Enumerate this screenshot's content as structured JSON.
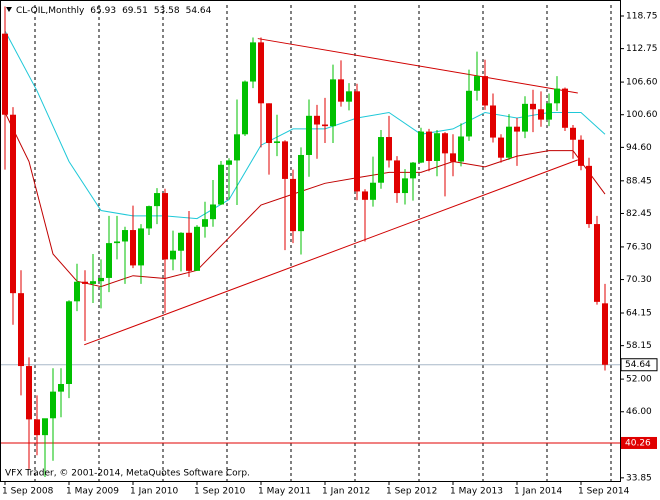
{
  "chart_data": {
    "type": "candlestick",
    "title": "CL-OIL,Monthly",
    "credit": "VFX Trader, © 2001-2014, MetaQuotes Software Corp.",
    "categories": [
      "1 Sep 2008",
      null,
      null,
      null,
      null,
      null,
      null,
      null,
      "1 May 2009",
      null,
      null,
      null,
      null,
      null,
      null,
      null,
      "1 Jan 2010",
      null,
      null,
      null,
      null,
      null,
      null,
      null,
      "1 Sep 2010",
      null,
      null,
      null,
      null,
      null,
      null,
      null,
      "1 May 2011",
      null,
      null,
      null,
      null,
      null,
      null,
      null,
      "1 Jan 2012",
      null,
      null,
      null,
      null,
      null,
      null,
      null,
      "1 Sep 2012",
      null,
      null,
      null,
      null,
      null,
      null,
      null,
      "1 May 2013",
      null,
      null,
      null,
      null,
      null,
      null,
      null,
      "1 Jan 2014",
      null,
      null,
      null,
      null,
      null,
      null,
      null,
      "1 Sep 2014",
      null,
      null,
      null
    ],
    "open": [
      115.5,
      100.6,
      67.8,
      54.4,
      44.6,
      41.7,
      44.8,
      49.7,
      51.1,
      66.3,
      69.9,
      69.5,
      70,
      70.6,
      77,
      77.3,
      79.4,
      72.9,
      79.7,
      83.8,
      86.2,
      74,
      75.6,
      78.9,
      71.9,
      80,
      81.4,
      84.1,
      91.4,
      92.2,
      97,
      106.7,
      113.9,
      102.7,
      95.4,
      95.7,
      88.8,
      79.2,
      93.2,
      100.4,
      98.8,
      98.5,
      107.1,
      103,
      104.9,
      86.5,
      84.96,
      88.1,
      96.5,
      92.2,
      86.2,
      88.9,
      91.8,
      97.5,
      92.1,
      97.2,
      93.5,
      92,
      96.6,
      105,
      107.7,
      102.3,
      96.4,
      92.7,
      98.4,
      97.5,
      102.6,
      101.6,
      99.7,
      102.7,
      105.4,
      98.2,
      96,
      91.2,
      80.5,
      65.93
    ],
    "high": [
      120.5,
      102,
      72,
      56,
      49,
      44,
      54,
      54,
      66.5,
      73.2,
      72,
      75,
      74,
      82,
      82,
      80,
      83.9,
      80.5,
      83.9,
      87.1,
      87,
      79.3,
      79,
      82.9,
      80.3,
      84.6,
      88.6,
      92.1,
      92.6,
      103.4,
      106.9,
      114.8,
      114.8,
      102.7,
      100.6,
      95.9,
      90.5,
      94.6,
      103.4,
      102.4,
      103.7,
      109.8,
      110.6,
      106.4,
      106.3,
      86.9,
      92.9,
      97.8,
      100.4,
      93,
      90.6,
      91.9,
      98.2,
      98,
      97.8,
      97.4,
      97,
      99,
      108.9,
      112.2,
      110.7,
      104.5,
      97,
      100.7,
      100,
      104,
      105.2,
      104.9,
      104.5,
      107.7,
      105.6,
      98.7,
      96.8,
      92.7,
      82,
      69.51
    ],
    "low": [
      90.5,
      62,
      49,
      35.5,
      38,
      34,
      37,
      45,
      48.5,
      64.5,
      59,
      66,
      65,
      68,
      74,
      69.5,
      72.4,
      69.5,
      78.5,
      80.5,
      64.2,
      72,
      71.8,
      70.8,
      72,
      78,
      80,
      84,
      85,
      84,
      96.7,
      105.5,
      94.6,
      89.6,
      93,
      75.7,
      77,
      74.9,
      89.2,
      92.5,
      95.4,
      95.4,
      102.1,
      101.4,
      84.9,
      77.3,
      83.7,
      87,
      90.9,
      84.4,
      84.1,
      84.8,
      91.7,
      90.2,
      89.3,
      85.6,
      89.3,
      91.1,
      95.8,
      103.2,
      101.5,
      95.5,
      91.8,
      92.3,
      91.2,
      96.3,
      97.4,
      98.4,
      98.5,
      101.3,
      97.6,
      92.5,
      90.4,
      79.8,
      65.7,
      53.58
    ],
    "close": [
      100.6,
      67.8,
      54.4,
      44.6,
      41.7,
      44.8,
      49.7,
      51.1,
      66.3,
      69.9,
      69.5,
      70,
      70.6,
      77,
      77.3,
      79.4,
      72.9,
      79.7,
      83.8,
      86.2,
      74,
      75.6,
      78.9,
      71.9,
      80,
      81.4,
      84.1,
      91.4,
      92.2,
      97,
      106.7,
      113.9,
      102.7,
      95.4,
      95.7,
      88.8,
      79.2,
      93.2,
      100.4,
      98.8,
      98.5,
      107.1,
      103,
      104.9,
      86.5,
      84.96,
      88.1,
      96.5,
      92.2,
      86.2,
      88.9,
      91.8,
      97.5,
      92.1,
      97.2,
      93.5,
      92,
      96.6,
      105,
      107.7,
      102.3,
      96.4,
      92.7,
      98.4,
      97.5,
      102.6,
      101.6,
      99.7,
      102.7,
      105.4,
      98.2,
      96,
      91.2,
      80.5,
      66.2,
      54.64
    ],
    "up_color": "#00c000",
    "down_color": "#e00000",
    "lines": [
      {
        "color": "#1ec8d8",
        "x": [
          0,
          4,
          8,
          12,
          16,
          20,
          24,
          28,
          32,
          36,
          40,
          44,
          48,
          52,
          56,
          60,
          64,
          68,
          72,
          75
        ],
        "values": [
          116,
          105,
          92,
          83,
          82,
          82,
          81.5,
          85,
          95,
          98,
          98,
          100,
          101,
          97,
          98,
          101,
          100,
          101,
          101,
          97
        ]
      },
      {
        "color": "#c00000",
        "x": [
          0,
          3,
          6,
          9,
          12,
          16,
          20,
          24,
          28,
          32,
          36,
          40,
          44,
          48,
          52,
          56,
          60,
          64,
          68,
          71,
          73,
          75
        ],
        "values": [
          101,
          92,
          75,
          70,
          69,
          71,
          70.5,
          72,
          78,
          84,
          86,
          88,
          89,
          90,
          90,
          92,
          91,
          93,
          94,
          94,
          90,
          86
        ]
      }
    ],
    "trendlines": [
      {
        "color": "#d00000",
        "x": [
          31.6,
          71.6
        ],
        "values": [
          114.6,
          104.6
        ]
      },
      {
        "color": "#d00000",
        "x": [
          9.9,
          71.6
        ],
        "values": [
          58.3,
          92.3
        ]
      }
    ],
    "levels": [
      {
        "value": 40.26,
        "color": "#e00000"
      }
    ],
    "ylim": [
      33.27,
      120.77
    ],
    "yticks": [
      118.75,
      112.75,
      {
        "value": 106.6,
        "label": "106.60"
      },
      {
        "value": 100.6,
        "label": "100.60"
      },
      {
        "value": 94.6,
        "label": "94.60"
      },
      88.45,
      82.45,
      {
        "value": 76.3,
        "label": "76.30"
      },
      {
        "value": 70.3,
        "label": "70.30"
      },
      64.15,
      58.15,
      {
        "value": 52,
        "label": "52.00"
      },
      {
        "value": 46,
        "label": "46.00"
      },
      33.85
    ]
  }
}
